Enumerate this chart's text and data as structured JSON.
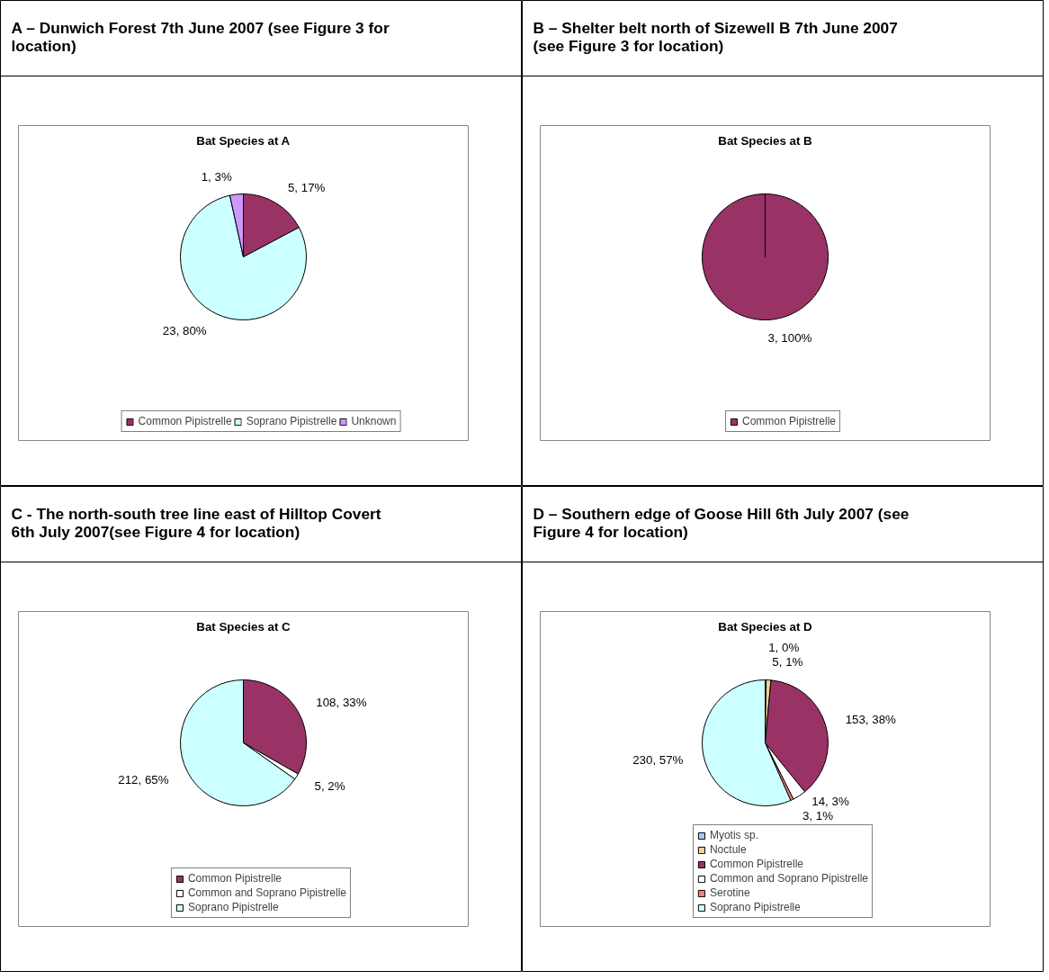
{
  "chart_data": [
    {
      "type": "pie",
      "subtitle": "A – Dunwich Forest 7th June 2007 (see Figure 3 for location)",
      "title": "Bat Species at A",
      "categories": [
        "Common Pipistrelle",
        "Soprano Pipistrelle",
        "Unknown"
      ],
      "values": [
        5,
        23,
        1
      ],
      "colors": [
        "#993366",
        "#ccffff",
        "#cc99ff"
      ],
      "value_labels": [
        "5, 17%",
        "23, 80%",
        "1, 3%"
      ],
      "legend": "bottom"
    },
    {
      "type": "pie",
      "subtitle": "B – Shelter belt north of Sizewell B 7th June 2007 (see Figure 3 for location)",
      "title": "Bat Species at B",
      "categories": [
        "Common Pipistrelle"
      ],
      "values": [
        3
      ],
      "colors": [
        "#993366"
      ],
      "value_labels": [
        "3, 100%"
      ],
      "legend": "bottom"
    },
    {
      "type": "pie",
      "subtitle": "C - The north-south tree line east of Hilltop Covert 6th July 2007(see Figure 4 for location)",
      "title": "Bat Species at C",
      "categories": [
        "Common Pipistrelle",
        "Common and Soprano Pipistrelle",
        "Soprano Pipistrelle"
      ],
      "values": [
        108,
        5,
        212
      ],
      "colors": [
        "#993366",
        "#ffffff",
        "#ccffff"
      ],
      "value_labels": [
        "108, 33%",
        "5, 2%",
        "212, 65%"
      ],
      "legend": "bottom"
    },
    {
      "type": "pie",
      "subtitle": "D – Southern edge of Goose Hill 6th July 2007 (see Figure 4 for location)",
      "title": "Bat Species at D",
      "categories": [
        "Myotis sp.",
        "Noctule",
        "Common Pipistrelle",
        "Common and Soprano Pipistrelle",
        "Serotine",
        "Soprano Pipistrelle"
      ],
      "values": [
        1,
        5,
        153,
        14,
        3,
        230
      ],
      "colors": [
        "#99ccff",
        "#ffcc99",
        "#993366",
        "#ffffff",
        "#ff8080",
        "#ccffff"
      ],
      "value_labels": [
        "1, 0%",
        "5, 1%",
        "153, 38%",
        "14, 3%",
        "3, 1%",
        "230, 57%"
      ],
      "legend": "bottom"
    }
  ]
}
